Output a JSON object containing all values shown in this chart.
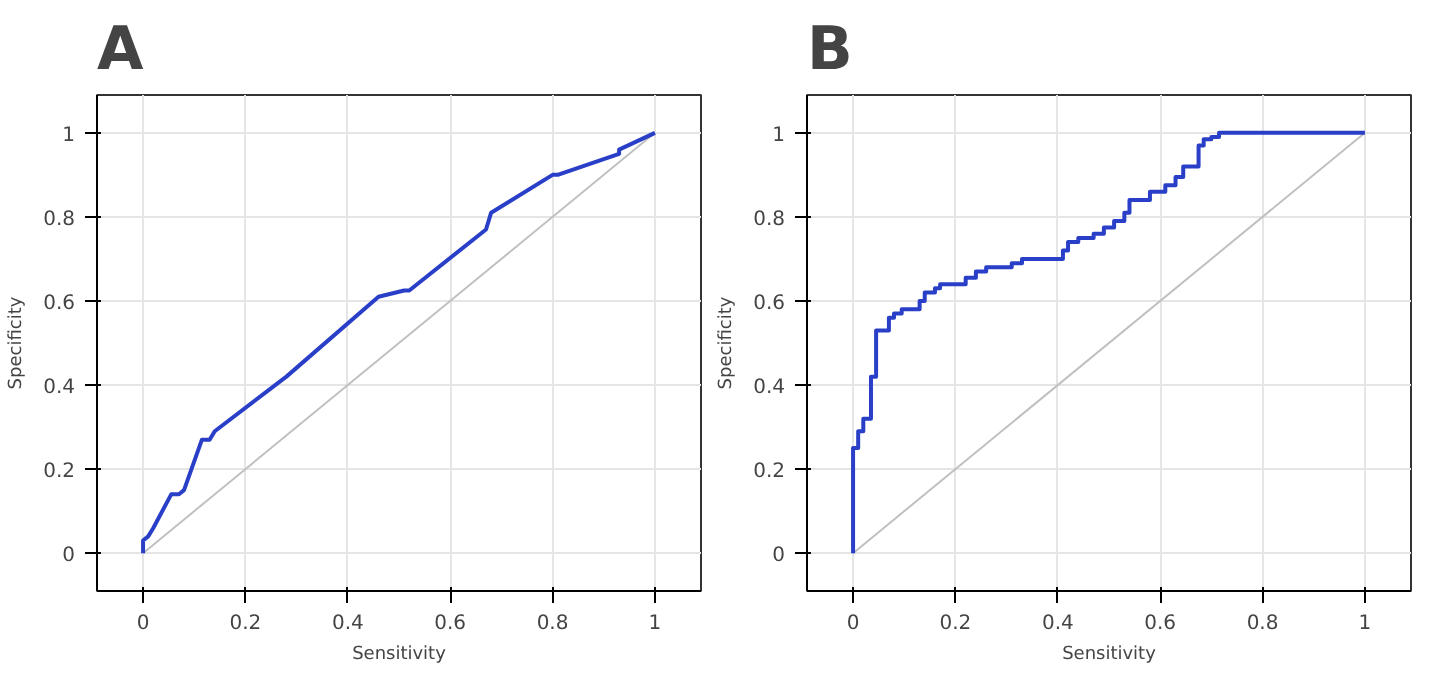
{
  "chart_data": [
    {
      "type": "line",
      "title": "A",
      "xlabel": "Sensitivity",
      "ylabel": "Specificity",
      "xlim": [
        -0.09,
        1.09
      ],
      "ylim": [
        -0.09,
        1.09
      ],
      "xticks": [
        0,
        0.2,
        0.4,
        0.6,
        0.8,
        1
      ],
      "yticks": [
        0,
        0.2,
        0.4,
        0.6,
        0.8,
        1
      ],
      "grid": true,
      "marker": "none",
      "series": [
        {
          "color": "#c0c0c0",
          "x": [
            0,
            1
          ],
          "values": [
            0,
            1
          ]
        },
        {
          "color": "#2a3fc8",
          "x": [
            0,
            0,
            0.01,
            0.02,
            0.055,
            0.07,
            0.08,
            0.115,
            0.13,
            0.14,
            0.28,
            0.46,
            0.51,
            0.52,
            0.67,
            0.68,
            0.8,
            0.81,
            0.93,
            0.93,
            1
          ],
          "values": [
            0,
            0.03,
            0.04,
            0.06,
            0.14,
            0.14,
            0.15,
            0.27,
            0.27,
            0.29,
            0.42,
            0.61,
            0.625,
            0.625,
            0.77,
            0.81,
            0.9,
            0.9,
            0.95,
            0.96,
            1
          ]
        }
      ]
    },
    {
      "type": "line",
      "title": "B",
      "xlabel": "Sensitivity",
      "ylabel": "Specificity",
      "xlim": [
        -0.09,
        1.09
      ],
      "ylim": [
        -0.09,
        1.09
      ],
      "xticks": [
        0,
        0.2,
        0.4,
        0.6,
        0.8,
        1
      ],
      "yticks": [
        0,
        0.2,
        0.4,
        0.6,
        0.8,
        1
      ],
      "grid": true,
      "marker": "none",
      "series": [
        {
          "color": "#c0c0c0",
          "x": [
            0,
            1
          ],
          "values": [
            0,
            1
          ]
        },
        {
          "color": "#2a3fc8",
          "x": [
            0,
            0,
            0.01,
            0.01,
            0.02,
            0.02,
            0.035,
            0.035,
            0.045,
            0.045,
            0.07,
            0.07,
            0.08,
            0.08,
            0.095,
            0.095,
            0.13,
            0.13,
            0.14,
            0.14,
            0.16,
            0.16,
            0.17,
            0.17,
            0.22,
            0.22,
            0.24,
            0.24,
            0.26,
            0.26,
            0.31,
            0.31,
            0.33,
            0.33,
            0.41,
            0.41,
            0.42,
            0.42,
            0.44,
            0.44,
            0.47,
            0.47,
            0.49,
            0.49,
            0.51,
            0.51,
            0.53,
            0.53,
            0.54,
            0.54,
            0.58,
            0.58,
            0.61,
            0.61,
            0.63,
            0.63,
            0.645,
            0.645,
            0.675,
            0.675,
            0.685,
            0.685,
            0.7,
            0.7,
            0.715,
            0.715,
            1
          ],
          "values": [
            0,
            0.25,
            0.25,
            0.29,
            0.29,
            0.32,
            0.32,
            0.42,
            0.42,
            0.53,
            0.53,
            0.56,
            0.56,
            0.57,
            0.57,
            0.58,
            0.58,
            0.6,
            0.6,
            0.62,
            0.62,
            0.63,
            0.63,
            0.64,
            0.64,
            0.655,
            0.655,
            0.67,
            0.67,
            0.68,
            0.68,
            0.69,
            0.69,
            0.7,
            0.7,
            0.72,
            0.72,
            0.74,
            0.74,
            0.75,
            0.75,
            0.76,
            0.76,
            0.775,
            0.775,
            0.79,
            0.79,
            0.81,
            0.81,
            0.84,
            0.84,
            0.86,
            0.86,
            0.875,
            0.875,
            0.895,
            0.895,
            0.92,
            0.92,
            0.97,
            0.97,
            0.985,
            0.985,
            0.99,
            0.99,
            1,
            1
          ]
        }
      ]
    }
  ]
}
